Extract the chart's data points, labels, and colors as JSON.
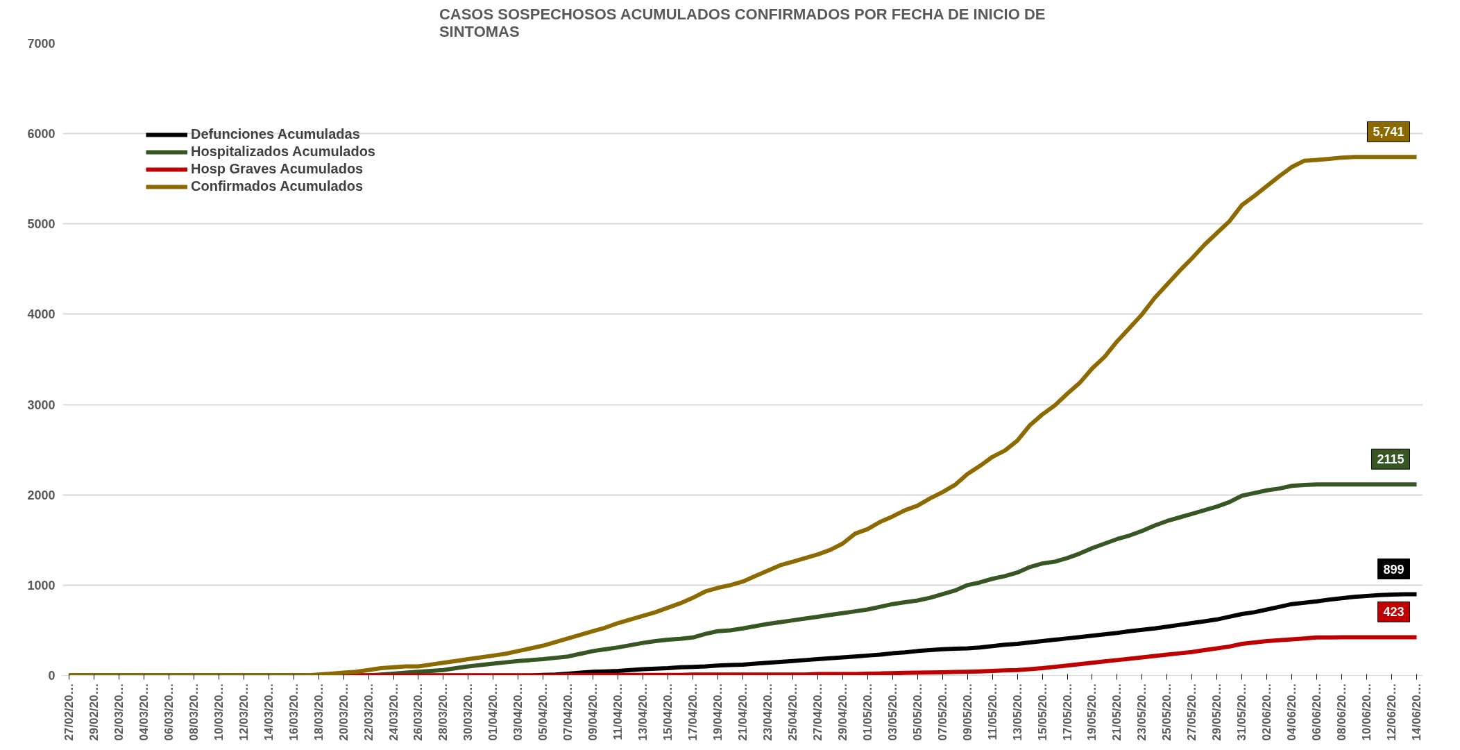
{
  "chart_data": {
    "type": "line",
    "title": "CASOS SOSPECHOSOS ACUMULADOS CONFIRMADOS POR FECHA DE INICIO DE SINTOMAS",
    "categories": [
      "27/02/20…",
      null,
      "29/02/20…",
      null,
      "02/03/20…",
      null,
      "04/03/20…",
      null,
      "06/03/20…",
      null,
      "08/03/20…",
      null,
      "10/03/20…",
      null,
      "12/03/20…",
      null,
      "14/03/20…",
      null,
      "16/03/20…",
      null,
      "18/03/20…",
      null,
      "20/03/20…",
      null,
      "22/03/20…",
      null,
      "24/03/20…",
      null,
      "26/03/20…",
      null,
      "28/03/20…",
      null,
      "30/03/20…",
      null,
      "01/04/20…",
      null,
      "03/04/20…",
      null,
      "05/04/20…",
      null,
      "07/04/20…",
      null,
      "09/04/20…",
      null,
      "11/04/20…",
      null,
      "13/04/20…",
      null,
      "15/04/20…",
      null,
      "17/04/20…",
      null,
      "19/04/20…",
      null,
      "21/04/20…",
      null,
      "23/04/20…",
      null,
      "25/04/20…",
      null,
      "27/04/20…",
      null,
      "29/04/20…",
      null,
      "01/05/20…",
      null,
      "03/05/20…",
      null,
      "05/05/20…",
      null,
      "07/05/20…",
      null,
      "09/05/20…",
      null,
      "11/05/20…",
      null,
      "13/05/20…",
      null,
      "15/05/20…",
      null,
      "17/05/20…",
      null,
      "19/05/20…",
      null,
      "21/05/20…",
      null,
      "23/05/20…",
      null,
      "25/05/20…",
      null,
      "27/05/20…",
      null,
      "29/05/20…",
      null,
      "31/05/20…",
      null,
      "02/06/20…",
      null,
      "04/06/20…",
      null,
      "06/06/20…",
      null,
      "08/06/20…",
      null,
      "10/06/20…",
      null,
      "12/06/20…",
      null,
      "14/06/20…"
    ],
    "ylim": [
      0,
      7000
    ],
    "yticks": [
      0,
      1000,
      2000,
      3000,
      4000,
      5000,
      6000,
      7000
    ],
    "grid": "y",
    "legend": "top left",
    "line_style": "solid",
    "marker": "none",
    "series": [
      {
        "name": "Defunciones Acumuladas",
        "color": "#000000",
        "values": [
          0,
          0,
          0,
          0,
          0,
          0,
          0,
          0,
          0,
          0,
          0,
          0,
          0,
          0,
          0,
          0,
          0,
          0,
          0,
          0,
          0,
          0,
          0,
          0,
          0,
          0,
          0,
          0,
          0,
          0,
          0,
          0,
          0,
          0,
          0,
          0,
          0,
          0,
          5,
          10,
          20,
          30,
          40,
          45,
          50,
          60,
          70,
          75,
          80,
          90,
          95,
          100,
          110,
          115,
          120,
          130,
          140,
          150,
          160,
          170,
          180,
          190,
          200,
          210,
          220,
          230,
          245,
          255,
          270,
          280,
          290,
          295,
          300,
          310,
          325,
          340,
          350,
          365,
          380,
          395,
          410,
          425,
          440,
          455,
          470,
          490,
          505,
          520,
          540,
          560,
          580,
          600,
          620,
          650,
          680,
          700,
          730,
          760,
          790,
          805,
          820,
          840,
          855,
          870,
          880,
          890,
          895,
          899,
          899
        ],
        "value_labels": [
          null,
          null,
          null,
          null,
          null,
          null,
          null,
          null,
          null,
          null,
          null,
          null,
          null,
          null,
          null,
          null,
          null,
          null,
          null,
          null,
          null,
          null,
          null,
          null,
          null,
          null,
          null,
          null,
          null,
          null,
          null,
          null,
          null,
          null,
          null,
          null,
          null,
          null,
          null,
          null,
          null,
          null,
          null,
          null,
          null,
          null,
          null,
          null,
          null,
          null,
          null,
          null,
          null,
          null,
          null,
          null,
          null,
          null,
          null,
          null,
          null,
          null,
          null,
          null,
          null,
          null,
          null,
          null,
          null,
          null,
          null,
          null,
          null,
          null,
          null,
          null,
          null,
          null,
          null,
          null,
          null,
          null,
          null,
          null,
          null,
          null,
          null,
          null,
          null,
          null,
          null,
          null,
          null,
          null,
          null,
          null,
          null,
          null,
          null,
          null,
          null,
          null,
          null,
          null,
          null,
          null,
          null,
          null,
          "899"
        ]
      },
      {
        "name": "Hospitalizados Acumulados",
        "color": "#375623",
        "values": [
          0,
          0,
          0,
          0,
          0,
          0,
          0,
          0,
          0,
          0,
          0,
          0,
          0,
          0,
          0,
          0,
          0,
          0,
          0,
          0,
          0,
          0,
          0,
          0,
          0,
          10,
          20,
          30,
          40,
          50,
          60,
          80,
          100,
          115,
          130,
          145,
          160,
          170,
          180,
          195,
          210,
          240,
          270,
          290,
          310,
          335,
          360,
          380,
          395,
          405,
          420,
          460,
          490,
          500,
          520,
          545,
          570,
          590,
          610,
          630,
          650,
          670,
          690,
          710,
          730,
          760,
          790,
          810,
          830,
          860,
          900,
          940,
          1000,
          1030,
          1070,
          1100,
          1140,
          1200,
          1240,
          1260,
          1300,
          1350,
          1410,
          1460,
          1510,
          1550,
          1600,
          1660,
          1710,
          1750,
          1790,
          1830,
          1870,
          1920,
          1990,
          2020,
          2050,
          2070,
          2100,
          2110,
          2115,
          2115,
          2115,
          2115,
          2115,
          2115,
          2115,
          2115,
          2115
        ],
        "value_labels": [
          null,
          null,
          null,
          null,
          null,
          null,
          null,
          null,
          null,
          null,
          null,
          null,
          null,
          null,
          null,
          null,
          null,
          null,
          null,
          null,
          null,
          null,
          null,
          null,
          null,
          null,
          null,
          null,
          null,
          null,
          null,
          null,
          null,
          null,
          null,
          null,
          null,
          null,
          null,
          null,
          null,
          null,
          null,
          null,
          null,
          null,
          null,
          null,
          null,
          null,
          null,
          null,
          null,
          null,
          null,
          null,
          null,
          null,
          null,
          null,
          null,
          null,
          null,
          null,
          null,
          null,
          null,
          null,
          null,
          null,
          null,
          null,
          null,
          null,
          null,
          null,
          null,
          null,
          null,
          null,
          null,
          null,
          null,
          null,
          null,
          null,
          null,
          null,
          null,
          null,
          null,
          null,
          null,
          null,
          null,
          null,
          null,
          null,
          null,
          null,
          null,
          null,
          null,
          null,
          null,
          null,
          null,
          null,
          "2115"
        ]
      },
      {
        "name": "Hosp Graves Acumulados",
        "color": "#C00000",
        "values": [
          null,
          null,
          null,
          null,
          null,
          null,
          null,
          null,
          null,
          null,
          null,
          null,
          null,
          null,
          null,
          null,
          null,
          null,
          null,
          null,
          null,
          0,
          0,
          0,
          0,
          0,
          0,
          0,
          0,
          0,
          0,
          0,
          0,
          0,
          0,
          0,
          0,
          0,
          0,
          0,
          5,
          5,
          5,
          5,
          5,
          5,
          5,
          5,
          5,
          5,
          10,
          10,
          10,
          10,
          10,
          10,
          10,
          10,
          10,
          10,
          15,
          15,
          15,
          15,
          20,
          22,
          25,
          28,
          30,
          32,
          35,
          38,
          40,
          45,
          50,
          55,
          60,
          70,
          80,
          95,
          110,
          125,
          140,
          155,
          170,
          185,
          200,
          215,
          230,
          245,
          260,
          280,
          300,
          320,
          350,
          365,
          380,
          390,
          400,
          410,
          420,
          421,
          422,
          423,
          423,
          423,
          423,
          423,
          423
        ],
        "value_labels": [
          null,
          null,
          null,
          null,
          null,
          null,
          null,
          null,
          null,
          null,
          null,
          null,
          null,
          null,
          null,
          null,
          null,
          null,
          null,
          null,
          null,
          null,
          null,
          null,
          null,
          null,
          null,
          null,
          null,
          null,
          null,
          null,
          null,
          null,
          null,
          null,
          null,
          null,
          null,
          null,
          null,
          null,
          null,
          null,
          null,
          null,
          null,
          null,
          null,
          null,
          null,
          null,
          null,
          null,
          null,
          null,
          null,
          null,
          null,
          null,
          null,
          null,
          null,
          null,
          null,
          null,
          null,
          null,
          null,
          null,
          null,
          null,
          null,
          null,
          null,
          null,
          null,
          null,
          null,
          null,
          null,
          null,
          null,
          null,
          null,
          null,
          null,
          null,
          null,
          null,
          null,
          null,
          null,
          null,
          null,
          null,
          null,
          null,
          null,
          null,
          null,
          null,
          null,
          null,
          null,
          null,
          null,
          null,
          "423"
        ]
      },
      {
        "name": "Confirmados Acumulados",
        "color": "#8C6A00",
        "values": [
          0,
          0,
          0,
          0,
          0,
          0,
          0,
          0,
          0,
          0,
          0,
          0,
          0,
          0,
          0,
          0,
          0,
          0,
          0,
          0,
          10,
          20,
          30,
          40,
          60,
          80,
          90,
          100,
          100,
          120,
          140,
          160,
          180,
          200,
          220,
          240,
          270,
          300,
          330,
          370,
          410,
          450,
          490,
          530,
          580,
          620,
          660,
          700,
          750,
          800,
          860,
          930,
          970,
          1000,
          1040,
          1100,
          1160,
          1220,
          1260,
          1300,
          1340,
          1390,
          1460,
          1570,
          1620,
          1700,
          1760,
          1830,
          1880,
          1960,
          2030,
          2110,
          2230,
          2320,
          2420,
          2490,
          2600,
          2770,
          2890,
          2990,
          3120,
          3240,
          3400,
          3530,
          3700,
          3850,
          4000,
          4180,
          4330,
          4480,
          4620,
          4770,
          4900,
          5030,
          5210,
          5310,
          5420,
          5530,
          5630,
          5700,
          5710,
          5720,
          5735,
          5741,
          5741,
          5741,
          5741,
          5741,
          5741
        ],
        "value_labels": [
          null,
          null,
          null,
          null,
          null,
          null,
          null,
          null,
          null,
          null,
          null,
          null,
          null,
          null,
          null,
          null,
          null,
          null,
          null,
          null,
          null,
          null,
          null,
          null,
          null,
          null,
          null,
          null,
          null,
          null,
          null,
          null,
          null,
          null,
          null,
          null,
          null,
          null,
          null,
          null,
          null,
          null,
          null,
          null,
          null,
          null,
          null,
          null,
          null,
          null,
          null,
          null,
          null,
          null,
          null,
          null,
          null,
          null,
          null,
          null,
          null,
          null,
          null,
          null,
          null,
          null,
          null,
          null,
          null,
          null,
          null,
          null,
          null,
          null,
          null,
          null,
          null,
          null,
          null,
          null,
          null,
          null,
          null,
          null,
          null,
          null,
          null,
          null,
          null,
          null,
          null,
          null,
          null,
          null,
          null,
          null,
          null,
          null,
          null,
          null,
          null,
          null,
          null,
          null,
          null,
          null,
          null,
          null,
          "5,741"
        ]
      }
    ]
  }
}
